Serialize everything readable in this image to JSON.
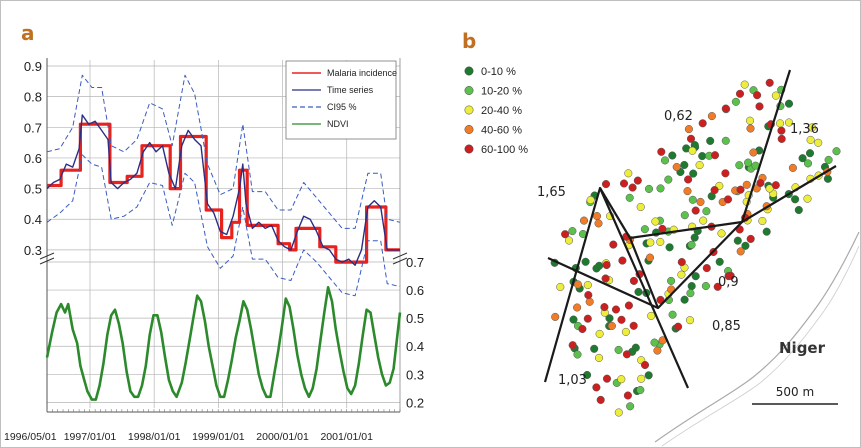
{
  "panels": {
    "a": "a",
    "b": "b"
  },
  "chart_data": [
    {
      "type": "line",
      "panel": "a",
      "title": "",
      "x_start": "1996/05/01",
      "x_end": "2001/11/01",
      "x_tick_labels": [
        "1996/05/01",
        "1997/01/01",
        "1998/01/01",
        "1999/01/01",
        "2000/01/01",
        "2001/01/01"
      ],
      "y_ticks_upper": [
        "0.9",
        "0.8",
        "0.7",
        "0.6",
        "0.5",
        "0.4",
        "0.3"
      ],
      "y_ticks_lower": [
        "0.7",
        "0.6",
        "0.5",
        "0.4",
        "0.3",
        "0.2"
      ],
      "ylim_upper": [
        0.22,
        0.92
      ],
      "ylim_lower": [
        0.14,
        0.72
      ],
      "grid": true,
      "legend_position": "top-right",
      "legend": [
        {
          "label": "Malaria incidence",
          "color": "#e8231e",
          "style": "solid"
        },
        {
          "label": "Time series",
          "color": "#2a2f86",
          "style": "solid"
        },
        {
          "label": "CI95 %",
          "color": "#3a5cc0",
          "style": "dashed"
        },
        {
          "label": "NDVI",
          "color": "#2c8a2c",
          "style": "solid"
        }
      ],
      "series": [
        {
          "name": "Malaria incidence",
          "axis": "upper",
          "color": "#e8231e",
          "points": [
            [
              0.0,
              0.51
            ],
            [
              0.22,
              0.51
            ],
            [
              0.22,
              0.56
            ],
            [
              0.52,
              0.56
            ],
            [
              0.52,
              0.71
            ],
            [
              0.98,
              0.71
            ],
            [
              0.98,
              0.52
            ],
            [
              1.25,
              0.52
            ],
            [
              1.25,
              0.54
            ],
            [
              1.48,
              0.54
            ],
            [
              1.48,
              0.64
            ],
            [
              1.92,
              0.64
            ],
            [
              1.92,
              0.5
            ],
            [
              2.08,
              0.5
            ],
            [
              2.08,
              0.67
            ],
            [
              2.48,
              0.67
            ],
            [
              2.48,
              0.43
            ],
            [
              2.72,
              0.43
            ],
            [
              2.72,
              0.34
            ],
            [
              2.88,
              0.34
            ],
            [
              2.88,
              0.39
            ],
            [
              3.0,
              0.39
            ],
            [
              3.0,
              0.56
            ],
            [
              3.12,
              0.56
            ],
            [
              3.12,
              0.38
            ],
            [
              3.6,
              0.38
            ],
            [
              3.6,
              0.32
            ],
            [
              3.78,
              0.32
            ],
            [
              3.78,
              0.3
            ],
            [
              3.88,
              0.3
            ],
            [
              3.88,
              0.37
            ],
            [
              4.25,
              0.37
            ],
            [
              4.25,
              0.31
            ],
            [
              4.5,
              0.31
            ],
            [
              4.5,
              0.26
            ],
            [
              4.98,
              0.26
            ],
            [
              4.98,
              0.44
            ],
            [
              5.28,
              0.44
            ],
            [
              5.28,
              0.3
            ],
            [
              5.5,
              0.3
            ]
          ]
        },
        {
          "name": "Time series",
          "axis": "upper",
          "color": "#2a2f86",
          "points": [
            [
              0.0,
              0.5
            ],
            [
              0.1,
              0.52
            ],
            [
              0.2,
              0.53
            ],
            [
              0.3,
              0.58
            ],
            [
              0.4,
              0.57
            ],
            [
              0.5,
              0.63
            ],
            [
              0.55,
              0.74
            ],
            [
              0.65,
              0.71
            ],
            [
              0.75,
              0.72
            ],
            [
              0.85,
              0.69
            ],
            [
              0.95,
              0.66
            ],
            [
              1.0,
              0.52
            ],
            [
              1.1,
              0.5
            ],
            [
              1.2,
              0.52
            ],
            [
              1.3,
              0.53
            ],
            [
              1.4,
              0.55
            ],
            [
              1.5,
              0.62
            ],
            [
              1.6,
              0.65
            ],
            [
              1.7,
              0.62
            ],
            [
              1.8,
              0.64
            ],
            [
              1.9,
              0.55
            ],
            [
              2.0,
              0.5
            ],
            [
              2.1,
              0.64
            ],
            [
              2.2,
              0.69
            ],
            [
              2.3,
              0.66
            ],
            [
              2.4,
              0.64
            ],
            [
              2.5,
              0.45
            ],
            [
              2.6,
              0.42
            ],
            [
              2.7,
              0.36
            ],
            [
              2.8,
              0.35
            ],
            [
              2.9,
              0.41
            ],
            [
              3.0,
              0.5
            ],
            [
              3.05,
              0.58
            ],
            [
              3.1,
              0.45
            ],
            [
              3.2,
              0.37
            ],
            [
              3.3,
              0.39
            ],
            [
              3.4,
              0.37
            ],
            [
              3.5,
              0.38
            ],
            [
              3.6,
              0.33
            ],
            [
              3.7,
              0.31
            ],
            [
              3.8,
              0.3
            ],
            [
              3.9,
              0.36
            ],
            [
              4.0,
              0.41
            ],
            [
              4.1,
              0.4
            ],
            [
              4.2,
              0.36
            ],
            [
              4.3,
              0.31
            ],
            [
              4.4,
              0.3
            ],
            [
              4.5,
              0.27
            ],
            [
              4.6,
              0.26
            ],
            [
              4.7,
              0.27
            ],
            [
              4.8,
              0.25
            ],
            [
              4.9,
              0.3
            ],
            [
              5.0,
              0.44
            ],
            [
              5.1,
              0.46
            ],
            [
              5.2,
              0.44
            ],
            [
              5.3,
              0.3
            ],
            [
              5.4,
              0.3
            ],
            [
              5.5,
              0.3
            ]
          ]
        },
        {
          "name": "CI95 % (upper)",
          "axis": "upper",
          "color": "#3a5cc0",
          "points": [
            [
              0.0,
              0.62
            ],
            [
              0.2,
              0.63
            ],
            [
              0.4,
              0.7
            ],
            [
              0.55,
              0.87
            ],
            [
              0.7,
              0.83
            ],
            [
              0.85,
              0.83
            ],
            [
              1.0,
              0.64
            ],
            [
              1.2,
              0.62
            ],
            [
              1.4,
              0.66
            ],
            [
              1.6,
              0.78
            ],
            [
              1.8,
              0.76
            ],
            [
              1.95,
              0.64
            ],
            [
              2.15,
              0.87
            ],
            [
              2.3,
              0.81
            ],
            [
              2.5,
              0.58
            ],
            [
              2.7,
              0.48
            ],
            [
              2.9,
              0.5
            ],
            [
              3.05,
              0.71
            ],
            [
              3.2,
              0.49
            ],
            [
              3.4,
              0.49
            ],
            [
              3.6,
              0.43
            ],
            [
              3.8,
              0.43
            ],
            [
              4.0,
              0.52
            ],
            [
              4.2,
              0.47
            ],
            [
              4.4,
              0.42
            ],
            [
              4.6,
              0.37
            ],
            [
              4.8,
              0.37
            ],
            [
              5.0,
              0.55
            ],
            [
              5.2,
              0.55
            ],
            [
              5.3,
              0.4
            ],
            [
              5.5,
              0.39
            ]
          ]
        },
        {
          "name": "CI95 % (lower)",
          "axis": "upper",
          "color": "#3a5cc0",
          "points": [
            [
              0.0,
              0.39
            ],
            [
              0.2,
              0.42
            ],
            [
              0.4,
              0.46
            ],
            [
              0.55,
              0.61
            ],
            [
              0.7,
              0.58
            ],
            [
              0.85,
              0.57
            ],
            [
              1.0,
              0.4
            ],
            [
              1.2,
              0.41
            ],
            [
              1.4,
              0.44
            ],
            [
              1.6,
              0.52
            ],
            [
              1.8,
              0.51
            ],
            [
              1.95,
              0.38
            ],
            [
              2.15,
              0.55
            ],
            [
              2.3,
              0.52
            ],
            [
              2.5,
              0.31
            ],
            [
              2.7,
              0.24
            ],
            [
              2.9,
              0.28
            ],
            [
              3.05,
              0.44
            ],
            [
              3.2,
              0.27
            ],
            [
              3.4,
              0.27
            ],
            [
              3.6,
              0.21
            ],
            [
              3.8,
              0.2
            ],
            [
              4.0,
              0.3
            ],
            [
              4.2,
              0.26
            ],
            [
              4.4,
              0.21
            ],
            [
              4.6,
              0.16
            ],
            [
              4.8,
              0.15
            ],
            [
              5.0,
              0.33
            ],
            [
              5.2,
              0.33
            ],
            [
              5.3,
              0.19
            ],
            [
              5.5,
              0.18
            ]
          ]
        },
        {
          "name": "NDVI",
          "axis": "lower",
          "color": "#2c8a2c",
          "points": [
            [
              0.0,
              0.36
            ],
            [
              0.08,
              0.45
            ],
            [
              0.15,
              0.52
            ],
            [
              0.22,
              0.55
            ],
            [
              0.28,
              0.52
            ],
            [
              0.33,
              0.55
            ],
            [
              0.4,
              0.46
            ],
            [
              0.47,
              0.41
            ],
            [
              0.52,
              0.33
            ],
            [
              0.58,
              0.28
            ],
            [
              0.63,
              0.24
            ],
            [
              0.7,
              0.21
            ],
            [
              0.76,
              0.21
            ],
            [
              0.82,
              0.26
            ],
            [
              0.88,
              0.34
            ],
            [
              0.94,
              0.44
            ],
            [
              1.0,
              0.51
            ],
            [
              1.06,
              0.53
            ],
            [
              1.12,
              0.48
            ],
            [
              1.18,
              0.41
            ],
            [
              1.24,
              0.31
            ],
            [
              1.3,
              0.24
            ],
            [
              1.36,
              0.22
            ],
            [
              1.42,
              0.22
            ],
            [
              1.48,
              0.26
            ],
            [
              1.54,
              0.33
            ],
            [
              1.6,
              0.44
            ],
            [
              1.66,
              0.51
            ],
            [
              1.72,
              0.51
            ],
            [
              1.78,
              0.45
            ],
            [
              1.84,
              0.36
            ],
            [
              1.9,
              0.28
            ],
            [
              1.96,
              0.24
            ],
            [
              2.02,
              0.22
            ],
            [
              2.1,
              0.27
            ],
            [
              2.16,
              0.34
            ],
            [
              2.22,
              0.42
            ],
            [
              2.28,
              0.5
            ],
            [
              2.34,
              0.58
            ],
            [
              2.4,
              0.56
            ],
            [
              2.46,
              0.49
            ],
            [
              2.52,
              0.4
            ],
            [
              2.58,
              0.33
            ],
            [
              2.64,
              0.26
            ],
            [
              2.7,
              0.22
            ],
            [
              2.76,
              0.22
            ],
            [
              2.82,
              0.28
            ],
            [
              2.88,
              0.35
            ],
            [
              2.94,
              0.43
            ],
            [
              3.0,
              0.49
            ],
            [
              3.06,
              0.56
            ],
            [
              3.12,
              0.53
            ],
            [
              3.18,
              0.46
            ],
            [
              3.24,
              0.38
            ],
            [
              3.3,
              0.3
            ],
            [
              3.36,
              0.25
            ],
            [
              3.42,
              0.22
            ],
            [
              3.48,
              0.22
            ],
            [
              3.54,
              0.3
            ],
            [
              3.6,
              0.38
            ],
            [
              3.66,
              0.47
            ],
            [
              3.72,
              0.57
            ],
            [
              3.78,
              0.54
            ],
            [
              3.84,
              0.46
            ],
            [
              3.9,
              0.37
            ],
            [
              3.96,
              0.3
            ],
            [
              4.02,
              0.25
            ],
            [
              4.08,
              0.22
            ],
            [
              4.14,
              0.25
            ],
            [
              4.2,
              0.32
            ],
            [
              4.26,
              0.42
            ],
            [
              4.32,
              0.52
            ],
            [
              4.38,
              0.61
            ],
            [
              4.44,
              0.56
            ],
            [
              4.5,
              0.46
            ],
            [
              4.56,
              0.38
            ],
            [
              4.62,
              0.31
            ],
            [
              4.68,
              0.25
            ],
            [
              4.74,
              0.23
            ],
            [
              4.8,
              0.26
            ],
            [
              4.86,
              0.34
            ],
            [
              4.92,
              0.44
            ],
            [
              4.98,
              0.53
            ],
            [
              5.04,
              0.52
            ],
            [
              5.1,
              0.44
            ],
            [
              5.16,
              0.36
            ],
            [
              5.22,
              0.3
            ],
            [
              5.28,
              0.26
            ],
            [
              5.34,
              0.27
            ],
            [
              5.4,
              0.32
            ],
            [
              5.46,
              0.44
            ],
            [
              5.5,
              0.52
            ]
          ]
        }
      ]
    },
    {
      "type": "scatter",
      "panel": "b",
      "title": "",
      "legend_position": "top-left",
      "classes": [
        {
          "label": "0-10 %",
          "color": "#1e7a2e"
        },
        {
          "label": "10-20 %",
          "color": "#5cc04c"
        },
        {
          "label": "20-40 %",
          "color": "#eded3c"
        },
        {
          "label": "40-60 %",
          "color": "#f07c28"
        },
        {
          "label": "60-100 %",
          "color": "#cc1f1f"
        }
      ],
      "zone_labels": [
        "0,62",
        "1,36",
        "1,65",
        "0,9",
        "0,85",
        "1,03"
      ],
      "river_label": "Niger",
      "scale_label": "500 m",
      "points_per_class": [
        58,
        44,
        52,
        30,
        60
      ]
    }
  ]
}
